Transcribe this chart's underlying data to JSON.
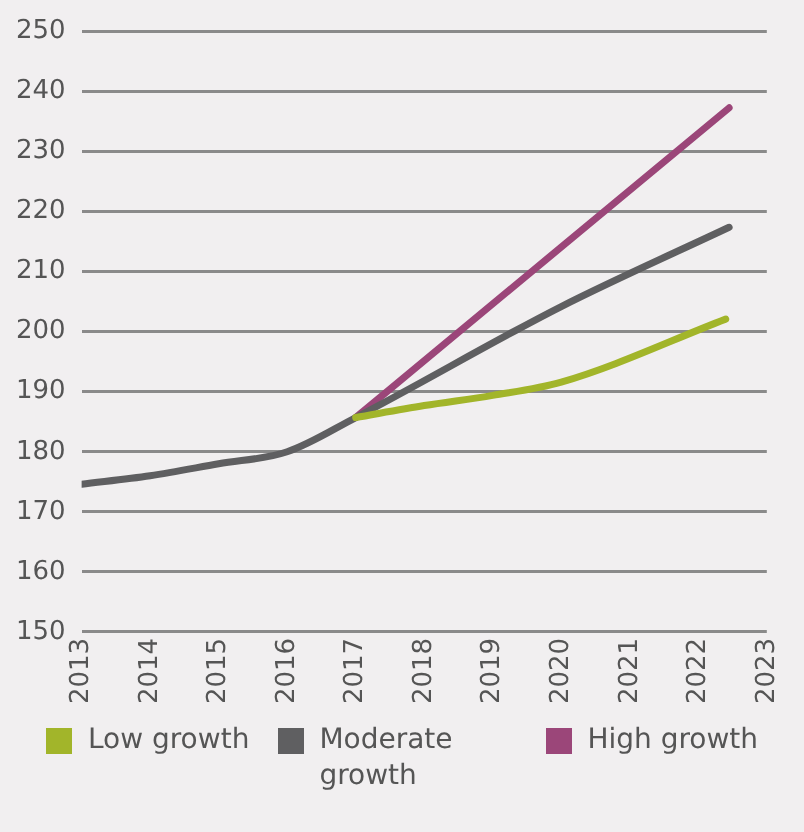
{
  "chart_data": {
    "type": "line",
    "series": [
      {
        "name": "Low growth",
        "color": "#a2b52a",
        "x": [
          2017,
          2018,
          2019,
          2020,
          2022.4
        ],
        "values": [
          185.7,
          187.7,
          189.4,
          191.6,
          202.1
        ]
      },
      {
        "name": "Moderate growth",
        "color": "#5f5f61",
        "x": [
          2013,
          2014,
          2015,
          2016,
          2017,
          2020,
          2022.45
        ],
        "values": [
          174.6,
          176,
          178,
          180,
          185.7,
          204.2,
          217.4
        ]
      },
      {
        "name": "High growth",
        "color": "#9b4679",
        "x": [
          2017,
          2022.45
        ],
        "values": [
          185.7,
          237.3
        ]
      }
    ],
    "xlim": [
      2013,
      2023
    ],
    "xticks": [
      2013,
      2014,
      2015,
      2016,
      2017,
      2018,
      2019,
      2020,
      2021,
      2022,
      2023
    ],
    "ylim": [
      150,
      250
    ],
    "yticks": [
      150,
      160,
      170,
      180,
      190,
      200,
      210,
      220,
      230,
      240,
      250
    ],
    "grid": "y",
    "legend": "bottom",
    "marker": "none"
  }
}
